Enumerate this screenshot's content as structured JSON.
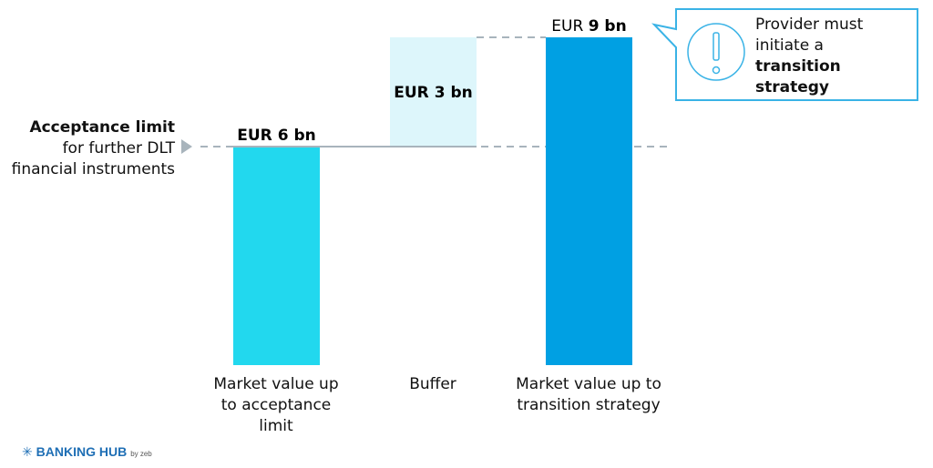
{
  "chart_data": {
    "type": "bar",
    "subtype": "waterfall",
    "categories": [
      "Market value up to acceptance limit",
      "Buffer",
      "Market value up to transition strategy"
    ],
    "category_lines": [
      [
        "Market value up",
        "to acceptance",
        "limit"
      ],
      [
        "Buffer"
      ],
      [
        "Market value up to",
        "transition strategy"
      ]
    ],
    "values": [
      6,
      3,
      9
    ],
    "bases": [
      0,
      6,
      0
    ],
    "unit": "EUR bn",
    "data_labels": [
      {
        "prefix": "EUR 6 bn",
        "bold": ""
      },
      {
        "prefix": "EUR 3 bn",
        "bold": ""
      },
      {
        "prefix": "EUR",
        "bold": "9 bn"
      }
    ],
    "colors": [
      "#22d8ee",
      "#ddf6fb",
      "#00a0e3"
    ],
    "ylim": [
      0,
      9
    ],
    "reference_line": {
      "value": 6,
      "label_bold": "Acceptance limit",
      "label_lines": [
        "for further DLT",
        "financial instruments"
      ]
    },
    "annotation": {
      "lines": [
        "Provider must",
        "initiate a"
      ],
      "bold_lines": [
        "transition",
        "strategy"
      ],
      "icon": "exclamation-circle-icon",
      "border_color": "#3ab3e6"
    },
    "grid": false
  },
  "logo": {
    "name": "BANKING HUB",
    "suffix": "by zeb"
  }
}
